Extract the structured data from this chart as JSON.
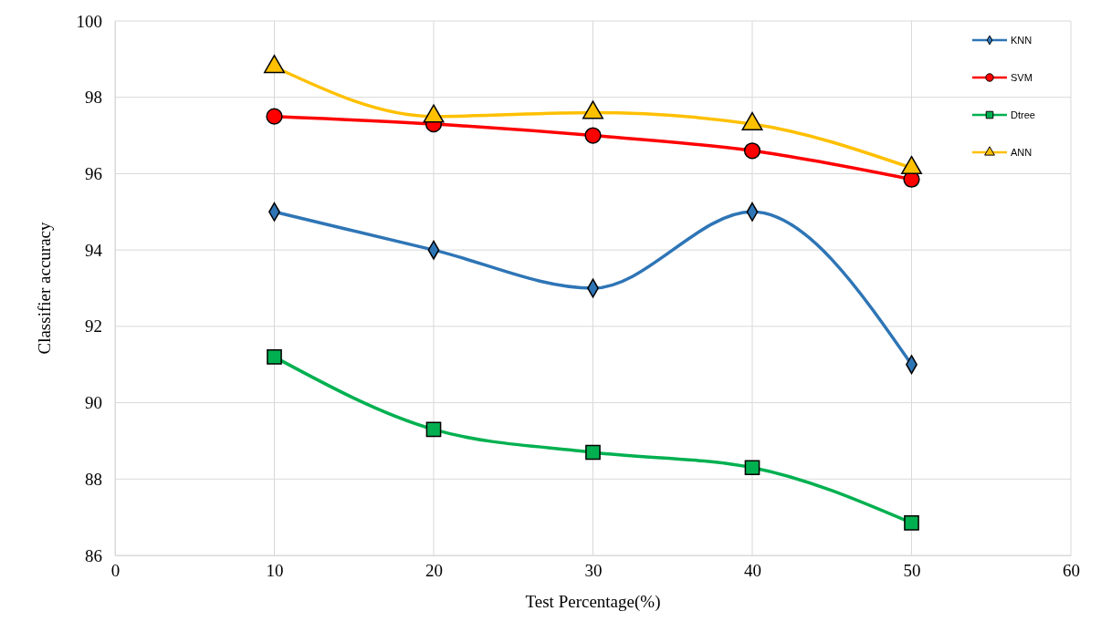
{
  "chart_data": {
    "type": "line",
    "xlabel": "Test Percentage(%)",
    "ylabel": "Classifier accuracy",
    "x": [
      10,
      20,
      30,
      40,
      50
    ],
    "xlim": [
      0,
      60
    ],
    "xticks": [
      0,
      10,
      20,
      30,
      40,
      50,
      60
    ],
    "ylim": [
      86,
      100
    ],
    "yticks": [
      86,
      88,
      90,
      92,
      94,
      96,
      98,
      100
    ],
    "grid": true,
    "legend": "top right",
    "line_style": "solid",
    "series": [
      {
        "name": "KNN",
        "color": "#2e75b6",
        "marker": "diamond",
        "values": [
          95,
          94,
          93,
          95,
          91
        ]
      },
      {
        "name": "SVM",
        "color": "#ff0000",
        "marker": "circle",
        "values": [
          97.5,
          97.3,
          97.0,
          96.6,
          95.85
        ]
      },
      {
        "name": "Dtree",
        "color": "#00b050",
        "marker": "square",
        "values": [
          91.2,
          89.3,
          88.7,
          88.3,
          86.85
        ]
      },
      {
        "name": "ANN",
        "color": "#ffc000",
        "marker": "triangle",
        "values": [
          98.8,
          97.5,
          97.6,
          97.3,
          96.15
        ]
      }
    ]
  }
}
